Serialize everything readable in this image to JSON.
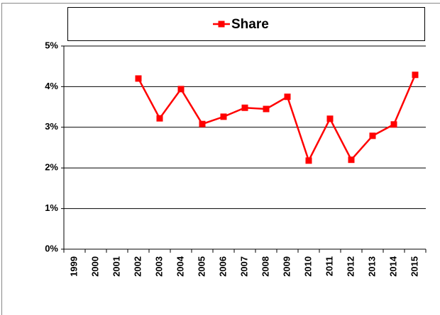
{
  "chart_data": {
    "type": "line",
    "categories": [
      "1999",
      "2000",
      "2001",
      "2002",
      "2003",
      "2004",
      "2005",
      "2006",
      "2007",
      "2008",
      "2009",
      "2010",
      "2011",
      "2012",
      "2013",
      "2014",
      "2015"
    ],
    "series": [
      {
        "name": "Share",
        "color": "#ff0000",
        "values": [
          null,
          null,
          null,
          4.2,
          3.22,
          3.94,
          3.08,
          3.26,
          3.48,
          3.45,
          3.75,
          2.18,
          3.21,
          2.2,
          2.79,
          3.07,
          4.29
        ]
      }
    ],
    "ylim": [
      0,
      5
    ],
    "yticks": [
      {
        "value": 0,
        "label": "0%"
      },
      {
        "value": 1,
        "label": "1%"
      },
      {
        "value": 2,
        "label": "2%"
      },
      {
        "value": 3,
        "label": "3%"
      },
      {
        "value": 4,
        "label": "4%"
      },
      {
        "value": 5,
        "label": "5%"
      }
    ],
    "grid": true,
    "legend": "top"
  }
}
